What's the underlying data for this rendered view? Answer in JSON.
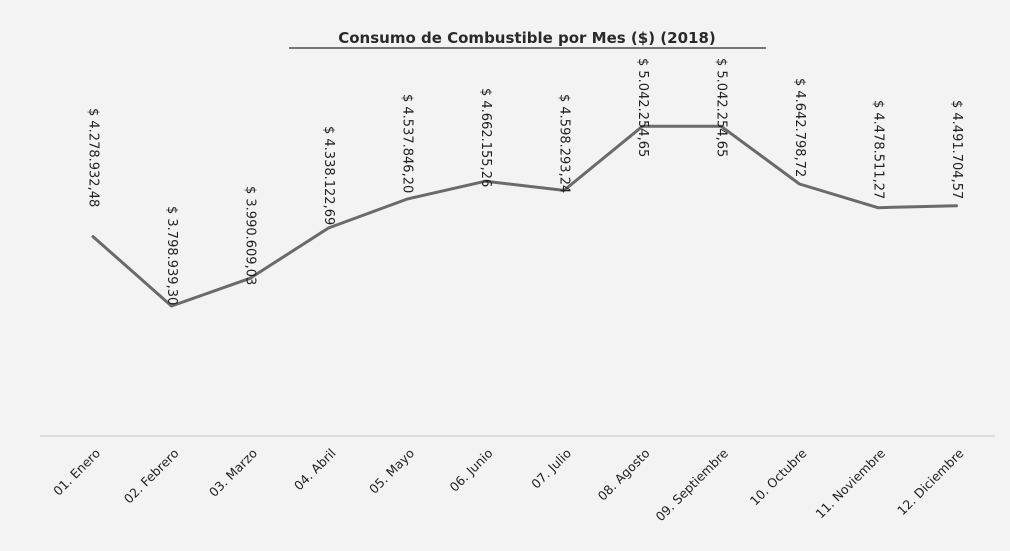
{
  "chart_data": {
    "type": "line",
    "title": "Consumo de Combustible por Mes ($) (2018)",
    "categories": [
      "01. Enero",
      "02. Febrero",
      "03. Marzo",
      "04. Abril",
      "05. Mayo",
      "06. Junio",
      "07. Julio",
      "08. Agosto",
      "09. Septiembre",
      "10. Octubre",
      "11. Noviembre",
      "12. Diciembre"
    ],
    "series": [
      {
        "values": [
          4278932.48,
          3798939.3,
          3990609.03,
          4338122.69,
          4537846.2,
          4662155.26,
          4598293.24,
          5042254.65,
          5042254.65,
          4642798.72,
          4478511.27,
          4491704.57
        ],
        "labels": [
          "$ 4.278.932,48",
          "$ 3.798.939,30",
          "$ 3.990.609,03",
          "$ 4.338.122,69",
          "$ 4.537.846,20",
          "$ 4.662.155,26",
          "$ 4.598.293,24",
          "$ 5.042.254,65",
          "$ 5.042.254,65",
          "$ 4.642.798,72",
          "$ 4.478.511,27",
          "$ 4.491.704,57"
        ]
      }
    ],
    "ylim": [
      2900000,
      5500000
    ],
    "grid": false,
    "legend": "none",
    "line_color": "#6a6a6a"
  }
}
